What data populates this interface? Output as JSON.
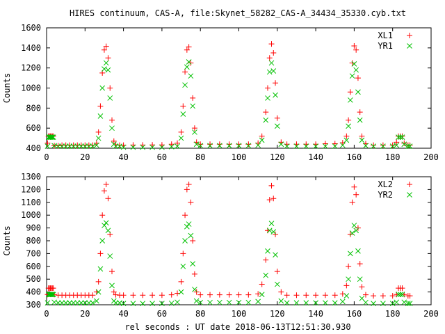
{
  "figure": {
    "title": "HIRES continuum, CAS-A, file:Skynet_58282_CAS-A_34434_35330.cyb.txt",
    "xlabel": "rel seconds : UT date 2018-06-13T12:51:30.930"
  },
  "colors": {
    "xl": "#ff0000",
    "yr": "#00c000",
    "frame": "#000000"
  },
  "chart_data": [
    {
      "type": "scatter",
      "ylabel": "Counts",
      "xlim": [
        0,
        200
      ],
      "ylim": [
        400,
        1600
      ],
      "xticks": [
        "0",
        "20",
        "40",
        "60",
        "80",
        "100",
        "120",
        "140",
        "160",
        "180",
        "200"
      ],
      "yticks": [
        "400",
        "600",
        "800",
        "1000",
        "1200",
        "1400",
        "1600"
      ],
      "legend_position": "top-right",
      "series": [
        {
          "name": "XL1",
          "marker": "plus",
          "color": "#ff0000",
          "x": [
            0.5,
            1,
            1.5,
            2,
            2.5,
            3,
            3.5,
            4,
            6,
            8,
            10,
            12,
            14,
            16,
            18,
            20,
            22,
            24,
            26,
            27,
            28,
            29,
            30,
            31,
            32,
            33,
            34,
            35,
            36,
            38,
            40,
            45,
            50,
            55,
            60,
            65,
            68,
            70,
            71,
            72,
            73,
            74,
            75,
            76,
            77,
            78,
            80,
            85,
            90,
            95,
            100,
            105,
            110,
            112,
            114,
            115,
            116,
            117,
            118,
            119,
            120,
            122,
            125,
            130,
            135,
            140,
            145,
            150,
            154,
            156,
            157,
            158,
            159,
            160,
            161,
            162,
            163,
            164,
            166,
            170,
            175,
            180,
            182,
            183,
            184,
            185,
            186,
            188,
            189
          ],
          "y": [
            450,
            520,
            520,
            520,
            520,
            520,
            520,
            425,
            425,
            430,
            430,
            430,
            430,
            430,
            430,
            430,
            430,
            430,
            450,
            560,
            820,
            1150,
            1380,
            1415,
            1300,
            1000,
            680,
            470,
            435,
            430,
            430,
            432,
            432,
            433,
            433,
            440,
            450,
            560,
            820,
            1160,
            1380,
            1410,
            1250,
            900,
            600,
            460,
            440,
            440,
            440,
            440,
            440,
            440,
            450,
            520,
            760,
            1000,
            1300,
            1440,
            1350,
            1050,
            700,
            460,
            440,
            440,
            440,
            440,
            445,
            445,
            455,
            520,
            680,
            960,
            1250,
            1420,
            1380,
            1100,
            760,
            520,
            445,
            430,
            430,
            430,
            460,
            520,
            520,
            520,
            450,
            430,
            430
          ]
        },
        {
          "name": "YR1",
          "marker": "cross",
          "color": "#00c000",
          "x": [
            0.5,
            1,
            1.5,
            2,
            2.5,
            3,
            3.5,
            4,
            6,
            8,
            10,
            12,
            14,
            16,
            18,
            20,
            22,
            24,
            26,
            27,
            28,
            29,
            30,
            31,
            32,
            33,
            34,
            35,
            36,
            38,
            40,
            45,
            50,
            55,
            60,
            65,
            68,
            70,
            71,
            72,
            73,
            74,
            75,
            76,
            77,
            78,
            80,
            85,
            90,
            95,
            100,
            105,
            110,
            112,
            114,
            115,
            116,
            117,
            118,
            119,
            120,
            122,
            125,
            130,
            135,
            140,
            145,
            150,
            154,
            156,
            157,
            158,
            159,
            160,
            161,
            162,
            163,
            164,
            166,
            170,
            175,
            180,
            182,
            183,
            184,
            185,
            186,
            188,
            189
          ],
          "y": [
            420,
            510,
            510,
            510,
            510,
            510,
            510,
            425,
            420,
            420,
            420,
            420,
            420,
            420,
            420,
            420,
            420,
            420,
            430,
            500,
            720,
            1000,
            1190,
            1250,
            1180,
            900,
            600,
            440,
            420,
            420,
            410,
            410,
            410,
            410,
            410,
            415,
            420,
            500,
            740,
            1030,
            1210,
            1260,
            1120,
            820,
            560,
            440,
            425,
            425,
            425,
            425,
            425,
            425,
            430,
            480,
            680,
            900,
            1160,
            1250,
            1170,
            930,
            620,
            440,
            420,
            420,
            420,
            420,
            420,
            420,
            430,
            480,
            620,
            880,
            1120,
            1240,
            1180,
            960,
            680,
            480,
            425,
            420,
            420,
            420,
            430,
            510,
            510,
            510,
            440,
            420,
            420
          ]
        }
      ]
    },
    {
      "type": "scatter",
      "ylabel": "Counts",
      "xlim": [
        0,
        200
      ],
      "ylim": [
        300,
        1300
      ],
      "xticks": [
        "0",
        "20",
        "40",
        "60",
        "80",
        "100",
        "120",
        "140",
        "160",
        "180",
        "200"
      ],
      "yticks": [
        "300",
        "400",
        "500",
        "600",
        "700",
        "800",
        "900",
        "1000",
        "1100",
        "1200",
        "1300"
      ],
      "legend_position": "top-right",
      "series": [
        {
          "name": "XL2",
          "marker": "plus",
          "color": "#ff0000",
          "x": [
            0.5,
            1,
            1.5,
            2,
            2.5,
            3,
            3.5,
            4,
            6,
            8,
            10,
            12,
            14,
            16,
            18,
            20,
            22,
            24,
            26,
            27,
            28,
            29,
            30,
            31,
            32,
            33,
            34,
            35,
            36,
            38,
            40,
            45,
            50,
            55,
            60,
            65,
            68,
            70,
            71,
            72,
            73,
            74,
            75,
            76,
            77,
            78,
            80,
            85,
            90,
            95,
            100,
            105,
            110,
            112,
            114,
            115,
            116,
            117,
            118,
            119,
            120,
            122,
            125,
            130,
            135,
            140,
            145,
            150,
            154,
            156,
            157,
            158,
            159,
            160,
            161,
            162,
            163,
            164,
            166,
            170,
            175,
            180,
            182,
            183,
            184,
            185,
            186,
            188,
            189
          ],
          "y": [
            380,
            430,
            430,
            430,
            430,
            430,
            430,
            380,
            375,
            375,
            375,
            375,
            375,
            375,
            375,
            375,
            375,
            375,
            400,
            480,
            700,
            1000,
            1190,
            1240,
            1130,
            850,
            560,
            400,
            378,
            375,
            375,
            375,
            375,
            375,
            375,
            378,
            390,
            480,
            700,
            1000,
            1200,
            1240,
            1100,
            800,
            540,
            400,
            378,
            378,
            378,
            378,
            378,
            378,
            385,
            460,
            650,
            880,
            1120,
            1230,
            1130,
            850,
            560,
            400,
            375,
            375,
            375,
            375,
            375,
            375,
            385,
            450,
            600,
            850,
            1100,
            1220,
            1160,
            900,
            620,
            440,
            378,
            370,
            370,
            370,
            380,
            430,
            430,
            430,
            380,
            370,
            370
          ]
        },
        {
          "name": "YR2",
          "marker": "cross",
          "color": "#00c000",
          "x": [
            0.5,
            1,
            1.5,
            2,
            2.5,
            3,
            3.5,
            4,
            6,
            8,
            10,
            12,
            14,
            16,
            18,
            20,
            22,
            24,
            26,
            27,
            28,
            29,
            30,
            31,
            32,
            33,
            34,
            35,
            36,
            38,
            40,
            45,
            50,
            55,
            60,
            65,
            68,
            70,
            71,
            72,
            73,
            74,
            75,
            76,
            77,
            78,
            80,
            85,
            90,
            95,
            100,
            105,
            110,
            112,
            114,
            115,
            116,
            117,
            118,
            119,
            120,
            122,
            125,
            130,
            135,
            140,
            145,
            150,
            154,
            156,
            157,
            158,
            159,
            160,
            161,
            162,
            163,
            164,
            166,
            170,
            175,
            180,
            182,
            183,
            184,
            185,
            186,
            188,
            189
          ],
          "y": [
            315,
            380,
            380,
            380,
            380,
            380,
            380,
            320,
            315,
            315,
            315,
            315,
            315,
            315,
            315,
            315,
            315,
            315,
            330,
            400,
            580,
            800,
            920,
            940,
            880,
            680,
            450,
            330,
            315,
            315,
            310,
            310,
            310,
            310,
            310,
            312,
            320,
            400,
            600,
            800,
            910,
            930,
            840,
            620,
            420,
            330,
            318,
            318,
            318,
            318,
            318,
            318,
            325,
            380,
            530,
            720,
            880,
            935,
            870,
            690,
            460,
            330,
            315,
            315,
            315,
            315,
            315,
            315,
            325,
            370,
            500,
            700,
            860,
            920,
            880,
            720,
            500,
            350,
            318,
            310,
            310,
            310,
            320,
            380,
            380,
            380,
            320,
            310,
            310
          ]
        }
      ]
    }
  ]
}
